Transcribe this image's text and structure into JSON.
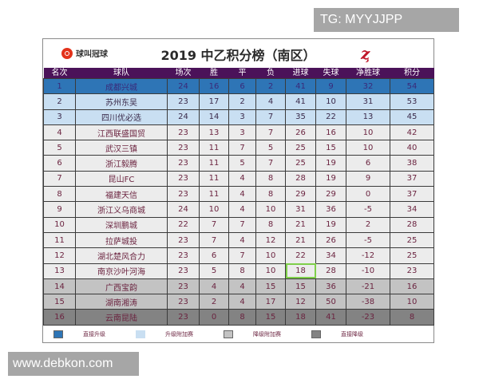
{
  "watermarks": {
    "top_right": "TG: MYYJJPP",
    "bottom_left": "www.debkon.com"
  },
  "header": {
    "logo_text": "球叫冠球",
    "title": "2019 中乙积分榜（南区）",
    "emblem": "ⱬ"
  },
  "columns": [
    "名次",
    "球队",
    "场次",
    "胜",
    "平",
    "负",
    "进球",
    "失球",
    "净胜球",
    "积分"
  ],
  "colors": {
    "header_bg": "#4b1259",
    "direct_up": "#2e75b6",
    "playoff_up": "#c9dff2",
    "playoff_down": "#c3c3c3",
    "direct_down": "#838383",
    "highlight_cell": "#7fcf4a"
  },
  "rows": [
    {
      "rank": "1",
      "team": "成都兴城",
      "played": "24",
      "w": "16",
      "d": "6",
      "l": "2",
      "gf": "41",
      "ga": "9",
      "gd": "32",
      "pts": "54",
      "zone": "direct-up"
    },
    {
      "rank": "2",
      "team": "苏州东吴",
      "played": "23",
      "w": "17",
      "d": "2",
      "l": "4",
      "gf": "41",
      "ga": "10",
      "gd": "31",
      "pts": "53",
      "zone": "playoff-up"
    },
    {
      "rank": "3",
      "team": "四川优必选",
      "played": "24",
      "w": "14",
      "d": "3",
      "l": "7",
      "gf": "35",
      "ga": "22",
      "gd": "13",
      "pts": "45",
      "zone": "playoff-up"
    },
    {
      "rank": "4",
      "team": "江西联盛国贸",
      "played": "23",
      "w": "13",
      "d": "3",
      "l": "7",
      "gf": "26",
      "ga": "16",
      "gd": "10",
      "pts": "42",
      "zone": "normal"
    },
    {
      "rank": "5",
      "team": "武汉三镇",
      "played": "23",
      "w": "11",
      "d": "7",
      "l": "5",
      "gf": "25",
      "ga": "15",
      "gd": "10",
      "pts": "40",
      "zone": "normal"
    },
    {
      "rank": "6",
      "team": "浙江毅腾",
      "played": "23",
      "w": "11",
      "d": "5",
      "l": "7",
      "gf": "25",
      "ga": "19",
      "gd": "6",
      "pts": "38",
      "zone": "normal"
    },
    {
      "rank": "7",
      "team": "昆山FC",
      "played": "23",
      "w": "11",
      "d": "4",
      "l": "8",
      "gf": "28",
      "ga": "19",
      "gd": "9",
      "pts": "37",
      "zone": "normal"
    },
    {
      "rank": "8",
      "team": "福建天信",
      "played": "23",
      "w": "11",
      "d": "4",
      "l": "8",
      "gf": "29",
      "ga": "29",
      "gd": "0",
      "pts": "37",
      "zone": "normal"
    },
    {
      "rank": "9",
      "team": "浙江义乌商城",
      "played": "24",
      "w": "10",
      "d": "4",
      "l": "10",
      "gf": "31",
      "ga": "36",
      "gd": "-5",
      "pts": "34",
      "zone": "normal"
    },
    {
      "rank": "10",
      "team": "深圳鹏城",
      "played": "22",
      "w": "7",
      "d": "7",
      "l": "8",
      "gf": "21",
      "ga": "19",
      "gd": "2",
      "pts": "28",
      "zone": "normal"
    },
    {
      "rank": "11",
      "team": "拉萨城投",
      "played": "23",
      "w": "7",
      "d": "4",
      "l": "12",
      "gf": "21",
      "ga": "26",
      "gd": "-5",
      "pts": "25",
      "zone": "normal"
    },
    {
      "rank": "12",
      "team": "湖北楚风合力",
      "played": "23",
      "w": "6",
      "d": "7",
      "l": "10",
      "gf": "22",
      "ga": "34",
      "gd": "-12",
      "pts": "25",
      "zone": "normal"
    },
    {
      "rank": "13",
      "team": "南京沙叶河海",
      "played": "23",
      "w": "5",
      "d": "8",
      "l": "10",
      "gf": "18",
      "ga": "28",
      "gd": "-10",
      "pts": "23",
      "zone": "normal"
    },
    {
      "rank": "14",
      "team": "广西宝韵",
      "played": "23",
      "w": "4",
      "d": "4",
      "l": "15",
      "gf": "15",
      "ga": "36",
      "gd": "-21",
      "pts": "16",
      "zone": "playoff-down"
    },
    {
      "rank": "15",
      "team": "湖南湘涛",
      "played": "23",
      "w": "2",
      "d": "4",
      "l": "17",
      "gf": "12",
      "ga": "50",
      "gd": "-38",
      "pts": "10",
      "zone": "playoff-down"
    },
    {
      "rank": "16",
      "team": "云南昆陆",
      "played": "23",
      "w": "0",
      "d": "8",
      "l": "15",
      "gf": "18",
      "ga": "41",
      "gd": "-23",
      "pts": "8",
      "zone": "direct-down"
    }
  ],
  "legend": [
    {
      "label": "直接升级",
      "color": "#2e75b6"
    },
    {
      "label": "升级附加赛",
      "color": "#c9dff2"
    },
    {
      "label": "降级附加赛",
      "color": "#c3c3c3"
    },
    {
      "label": "直接降级",
      "color": "#838383"
    }
  ]
}
